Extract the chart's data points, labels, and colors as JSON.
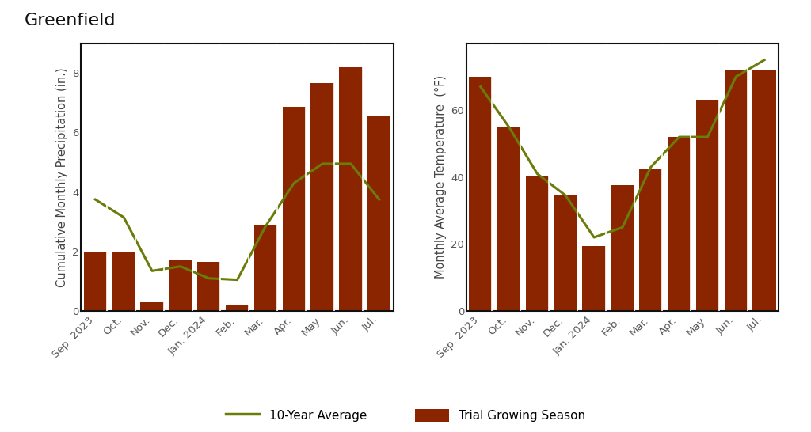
{
  "title": "Greenfield",
  "months": [
    "Sep. 2023",
    "Oct.",
    "Nov.",
    "Dec.",
    "Jan. 2024",
    "Feb.",
    "Mar.",
    "Apr.",
    "May",
    "Jun.",
    "Jul."
  ],
  "precip_bars": [
    2.0,
    2.0,
    0.3,
    1.7,
    1.65,
    0.2,
    2.9,
    6.85,
    7.65,
    8.2,
    6.55
  ],
  "precip_line": [
    3.75,
    3.15,
    1.35,
    1.5,
    1.1,
    1.05,
    2.85,
    4.3,
    4.95,
    4.95,
    3.75
  ],
  "temp_bars": [
    70,
    55,
    40.5,
    34.5,
    19.5,
    37.5,
    42.5,
    52,
    63,
    72,
    72
  ],
  "temp_line": [
    67,
    55,
    41,
    34.5,
    22,
    25,
    43,
    52,
    52,
    70,
    75
  ],
  "bar_color": "#8B2500",
  "line_color": "#6B7C0A",
  "ylabel_precip": "Cumulative Monthly Precipitation (in.)",
  "ylabel_temp": "Monthly Average Temperature  (°F)",
  "ylim_precip": [
    0,
    9.0
  ],
  "ylim_temp": [
    0,
    80
  ],
  "yticks_precip": [
    0,
    2,
    4,
    6,
    8
  ],
  "yticks_temp": [
    0,
    20,
    40,
    60
  ],
  "legend_line_label": "10-Year Average",
  "legend_bar_label": "Trial Growing Season",
  "background_color": "#ffffff",
  "plot_bg_color": "#f5f5f5",
  "title_fontsize": 16,
  "axis_label_fontsize": 10.5,
  "tick_fontsize": 9.5,
  "spine_color": "#111111"
}
